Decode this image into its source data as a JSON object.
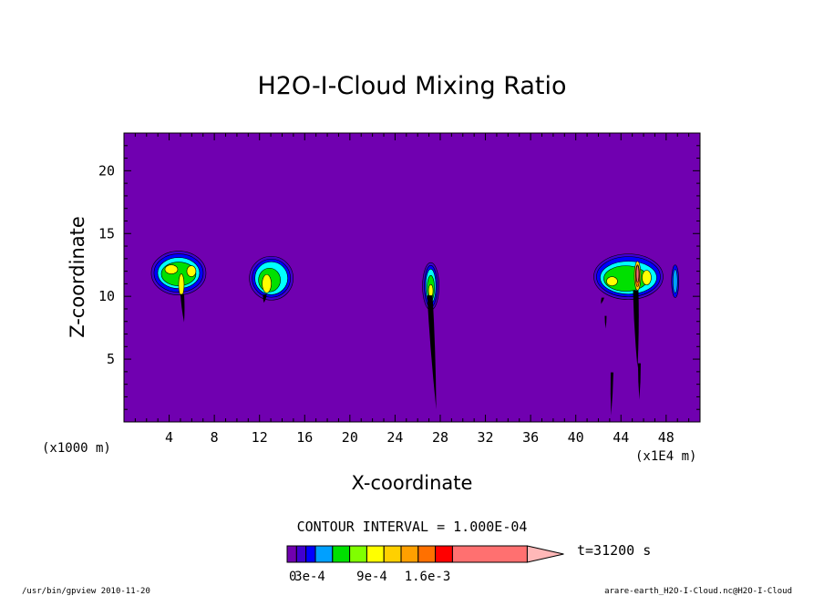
{
  "chart_data": {
    "type": "heatmap",
    "title": "H2O-I-Cloud Mixing Ratio",
    "xlabel": "X-coordinate",
    "ylabel": "Z-coordinate",
    "x_unit_left": "(x1000 m)",
    "x_unit_right": "(x1E4 m)",
    "x_ticks": [
      4,
      8,
      12,
      16,
      20,
      24,
      28,
      32,
      36,
      40,
      44,
      48
    ],
    "y_ticks": [
      5,
      10,
      15,
      20
    ],
    "xlim": [
      0,
      51
    ],
    "ylim": [
      0,
      23
    ],
    "contour_interval": "CONTOUR INTERVAL = 1.000E-04",
    "time_label": "t=31200 s",
    "colorbar": {
      "levels": [
        0,
        0.0001,
        0.0002,
        0.0003,
        0.0004,
        0.0005,
        0.0006,
        0.0007,
        0.0008,
        0.0009,
        0.001,
        0.0011,
        0.0012,
        0.0013,
        0.0014,
        0.0015,
        0.0016
      ],
      "labels": [
        "0",
        "3e-4",
        "9e-4",
        "1.6e-3"
      ],
      "label_values": [
        0,
        0.0003,
        0.0009,
        0.0016
      ],
      "colors": [
        "#7000b0",
        "#4000d0",
        "#0000ff",
        "#00a0ff",
        "#00ffff",
        "#00e000",
        "#80ff00",
        "#ffff00",
        "#ffd000",
        "#ffa000",
        "#ff7000",
        "#ff0000",
        "#ff7070",
        "#ff7070",
        "#ff7070",
        "#ff7070",
        "#ffb8b8"
      ]
    },
    "clouds": [
      {
        "x": 5,
        "z": 12,
        "peak": 0.0009
      },
      {
        "x": 12.8,
        "z": 11.3,
        "peak": 0.0009
      },
      {
        "x": 27,
        "z": 10.8,
        "peak": 0.0009
      },
      {
        "x": 44.5,
        "z": 11.2,
        "peak": 0.0016
      },
      {
        "x": 48.8,
        "z": 11.2,
        "peak": 0.0003
      }
    ],
    "background_color": "#7000b0"
  },
  "footer": {
    "left": "/usr/bin/gpview  2010-11-20",
    "right": "arare-earth_H2O-I-Cloud.nc@H2O-I-Cloud"
  }
}
